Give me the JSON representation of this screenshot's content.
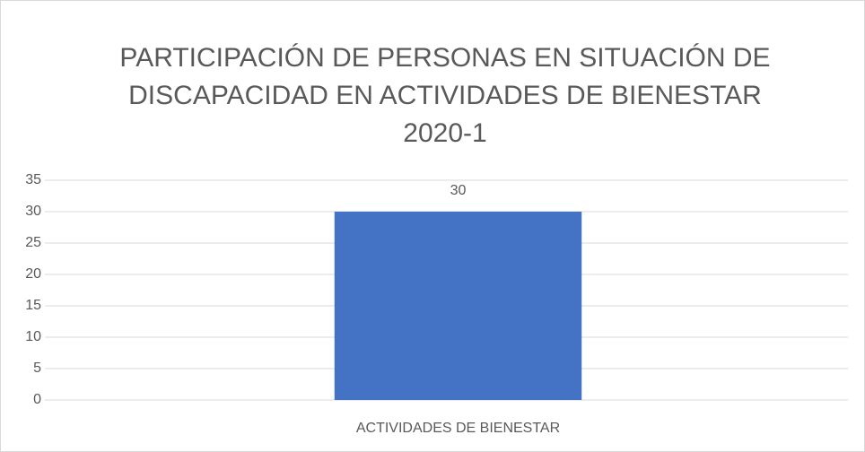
{
  "chart_data": {
    "type": "bar",
    "title": [
      "PARTICIPACIÓN DE PERSONAS EN SITUACIÓN DE",
      "DISCAPACIDAD EN ACTIVIDADES DE BIENESTAR",
      "2020-1"
    ],
    "categories": [
      "ACTIVIDADES DE BIENESTAR"
    ],
    "values": [
      30
    ],
    "color": "#4472c4",
    "ylim": [
      0,
      35
    ],
    "yticks": [
      0,
      5,
      10,
      15,
      20,
      25,
      30,
      35
    ],
    "grid": true,
    "data_labels": true
  }
}
